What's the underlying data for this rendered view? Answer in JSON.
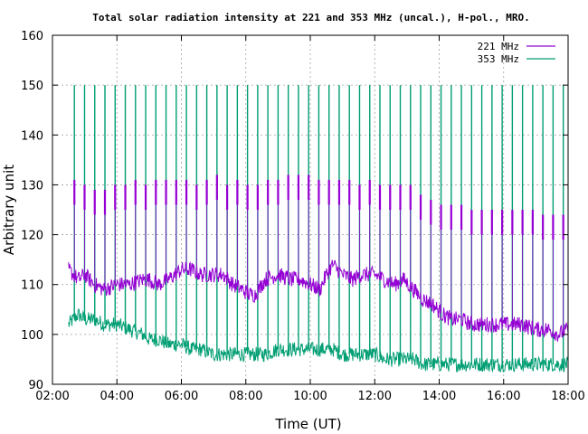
{
  "chart_data": {
    "type": "line",
    "title": "Total solar radiation intensity at 221 and 353 MHz (uncal.), H-pol., MRO.",
    "xlabel": "Time (UT)",
    "ylabel": "Arbitrary unit",
    "xlim": [
      2,
      18
    ],
    "ylim": [
      90,
      160
    ],
    "x_ticks": [
      "02:00",
      "04:00",
      "06:00",
      "08:00",
      "10:00",
      "12:00",
      "14:00",
      "16:00",
      "18:00"
    ],
    "y_ticks": [
      "90",
      "100",
      "110",
      "120",
      "130",
      "140",
      "150",
      "160"
    ],
    "grid": true,
    "legend_position": "top-right",
    "x_units": "hours UT",
    "series": [
      {
        "name": "221 MHz",
        "color": "#9400d3",
        "x": [
          2.5,
          2.8,
          3.0,
          3.3,
          3.6,
          4.0,
          4.4,
          4.8,
          5.0,
          5.3,
          5.6,
          6.0,
          6.3,
          6.6,
          7.0,
          7.3,
          7.6,
          7.9,
          8.1,
          8.3,
          8.6,
          9.0,
          9.4,
          9.7,
          10.0,
          10.3,
          10.5,
          10.7,
          11.0,
          11.3,
          11.6,
          12.0,
          12.3,
          12.6,
          12.9,
          13.2,
          13.5,
          13.8,
          14.1,
          14.4,
          14.7,
          15.0,
          15.3,
          15.6,
          16.0,
          16.3,
          16.6,
          17.0,
          17.4,
          17.7,
          18.0
        ],
        "values": [
          113,
          111,
          112,
          110,
          109,
          110,
          110,
          111,
          111,
          110,
          111,
          113,
          113,
          112,
          112,
          112,
          110,
          109,
          108,
          108,
          111,
          112,
          111,
          111,
          110,
          109,
          112,
          114,
          112,
          111,
          112,
          112,
          111,
          110,
          111,
          109,
          107,
          106,
          104,
          103,
          103,
          102,
          102,
          102,
          102,
          102,
          102,
          101,
          101,
          100,
          101
        ],
        "calibration_pulse_peaks": [
          131,
          130,
          129,
          129,
          130,
          130,
          131,
          130,
          131,
          131,
          131,
          131,
          130,
          131,
          132,
          130,
          131,
          130,
          130,
          131,
          131,
          132,
          132,
          132,
          131,
          131,
          131,
          131,
          130,
          131,
          130,
          130,
          130,
          130,
          128,
          127,
          126,
          126,
          126,
          125,
          125,
          125,
          125,
          125,
          125,
          125,
          124,
          124,
          124
        ]
      },
      {
        "name": "353 MHz",
        "color": "#009e73",
        "x": [
          2.5,
          2.8,
          3.0,
          3.3,
          3.6,
          4.0,
          4.4,
          4.8,
          5.0,
          5.3,
          5.6,
          6.0,
          6.3,
          6.6,
          7.0,
          7.3,
          7.6,
          7.9,
          8.1,
          8.3,
          8.6,
          9.0,
          9.4,
          9.7,
          10.0,
          10.3,
          10.5,
          10.7,
          11.0,
          11.3,
          11.6,
          12.0,
          12.3,
          12.6,
          12.9,
          13.2,
          13.5,
          13.8,
          14.1,
          14.4,
          14.7,
          15.0,
          15.3,
          15.6,
          16.0,
          16.3,
          16.6,
          17.0,
          17.4,
          17.7,
          18.0
        ],
        "values": [
          102,
          104,
          103,
          103,
          102,
          102,
          101,
          100,
          99,
          99,
          98,
          98,
          97,
          97,
          96,
          96,
          96,
          96,
          96,
          96,
          96,
          97,
          97,
          97,
          97,
          97,
          97,
          97,
          96,
          96,
          96,
          96,
          95,
          95,
          95,
          95,
          94,
          94,
          94,
          94,
          94,
          94,
          94,
          94,
          94,
          94,
          94,
          94,
          94,
          94,
          94
        ],
        "calibration_pulse_peaks": [
          150,
          150,
          150,
          150,
          150,
          150,
          150,
          150,
          150,
          150,
          150,
          150,
          150,
          150,
          150,
          150,
          150,
          150,
          150,
          150,
          150,
          150,
          150,
          150,
          150,
          150,
          150,
          150,
          150,
          150,
          150,
          150,
          150,
          150,
          150,
          150,
          150,
          150,
          150,
          150,
          150,
          150,
          150,
          150,
          150,
          150,
          150,
          150,
          150
        ]
      }
    ]
  }
}
